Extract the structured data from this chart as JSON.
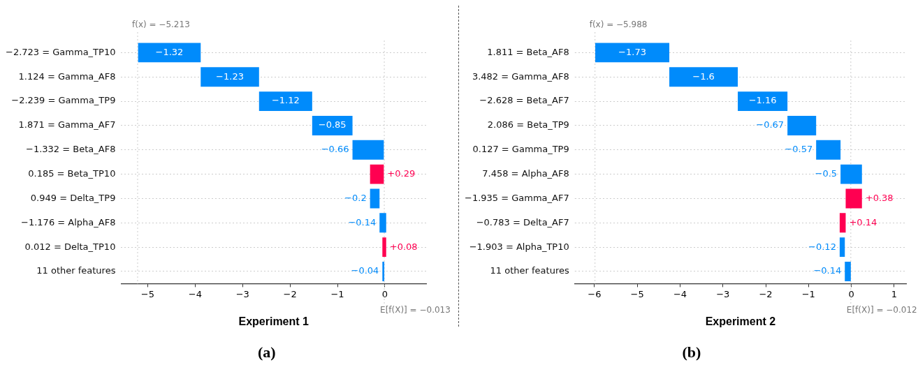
{
  "chart_data": [
    {
      "type": "bar",
      "orientation": "horizontal",
      "title": "Experiment 1",
      "categories": [
        "−2.723 = Gamma_TP10",
        "1.124 = Gamma_AF8",
        "−2.239 = Gamma_TP9",
        "1.871 = Gamma_AF7",
        "−1.332 = Beta_AF8",
        "0.185 = Beta_TP10",
        "0.949 = Delta_TP9",
        "−1.176 = Alpha_AF8",
        "0.012 = Delta_TP10",
        "11 other features"
      ],
      "values": [
        -1.32,
        -1.23,
        -1.12,
        -0.85,
        -0.66,
        0.29,
        -0.2,
        -0.14,
        0.08,
        -0.04
      ],
      "base": [
        -3.883,
        -2.653,
        -1.533,
        -0.683,
        -0.023,
        -0.313,
        -0.113,
        0.027,
        -0.053,
        -0.013
      ],
      "colors": [
        "#008bfb",
        "#008bfb",
        "#008bfb",
        "#008bfb",
        "#008bfb",
        "#ff0051",
        "#008bfb",
        "#008bfb",
        "#ff0051",
        "#008bfb"
      ],
      "value_labels": [
        "−1.32",
        "−1.23",
        "−1.12",
        "−0.85",
        "−0.66",
        "+0.29",
        "−0.2",
        "−0.14",
        "+0.08",
        "−0.04"
      ],
      "xlim": [
        -5.56,
        0.87
      ],
      "xticks": [
        {
          "value": -5,
          "label": "−5"
        },
        {
          "value": -4,
          "label": "−4"
        },
        {
          "value": -3,
          "label": "−3"
        },
        {
          "value": -2,
          "label": "−2"
        },
        {
          "value": -1,
          "label": "−1"
        },
        {
          "value": 0,
          "label": "0"
        }
      ],
      "grid": "y",
      "ref_lines": [
        {
          "axis": "x",
          "value": -5.213,
          "label": "f(x) = −5.213",
          "color": "#cccccc",
          "line_style": "dotted"
        },
        {
          "axis": "x",
          "value": -0.013,
          "label": "E[f(X)] = −0.013",
          "color": "#cccccc",
          "line_style": "dotted"
        }
      ],
      "annotations": [
        "(a)"
      ]
    },
    {
      "type": "bar",
      "orientation": "horizontal",
      "title": "Experiment 2",
      "categories": [
        "1.811 = Beta_AF8",
        "3.482 = Gamma_AF8",
        "−2.628 = Beta_AF7",
        "2.086 = Beta_TP9",
        "0.127 = Gamma_TP9",
        "7.458 = Alpha_AF8",
        "−1.935 = Gamma_AF7",
        "−0.783 = Delta_AF7",
        "−1.903 = Alpha_TP10",
        "11 other features"
      ],
      "values": [
        -1.73,
        -1.6,
        -1.16,
        -0.67,
        -0.57,
        -0.5,
        0.38,
        0.14,
        -0.12,
        -0.14
      ],
      "base": [
        -4.252,
        -2.652,
        -1.492,
        -0.822,
        -0.252,
        0.248,
        -0.132,
        -0.272,
        -0.152,
        -0.012
      ],
      "colors": [
        "#008bfb",
        "#008bfb",
        "#008bfb",
        "#008bfb",
        "#008bfb",
        "#008bfb",
        "#ff0051",
        "#ff0051",
        "#008bfb",
        "#008bfb"
      ],
      "value_labels": [
        "−1.73",
        "−1.6",
        "−1.16",
        "−0.67",
        "−0.57",
        "−0.5",
        "+0.38",
        "+0.14",
        "−0.12",
        "−0.14"
      ],
      "xlim": [
        -6.46,
        1.28
      ],
      "xticks": [
        {
          "value": -6,
          "label": "−6"
        },
        {
          "value": -5,
          "label": "−5"
        },
        {
          "value": -4,
          "label": "−4"
        },
        {
          "value": -3,
          "label": "−3"
        },
        {
          "value": -2,
          "label": "−2"
        },
        {
          "value": -1,
          "label": "−1"
        },
        {
          "value": 0,
          "label": "0"
        },
        {
          "value": 1,
          "label": "1"
        }
      ],
      "grid": "y",
      "ref_lines": [
        {
          "axis": "x",
          "value": -5.988,
          "label": "f(x) = −5.988",
          "color": "#cccccc",
          "line_style": "dotted"
        },
        {
          "axis": "x",
          "value": -0.012,
          "label": "E[f(X)] = −0.012",
          "color": "#cccccc",
          "line_style": "dotted"
        }
      ],
      "annotations": [
        "(b)"
      ]
    }
  ]
}
